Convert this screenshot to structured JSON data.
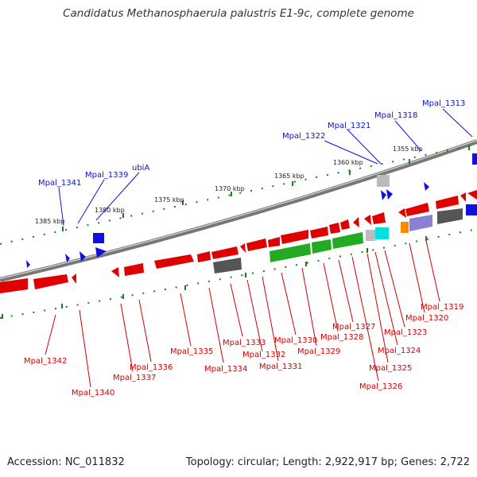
{
  "title": "Candidatus Methanosphaerula palustris E1-9c, complete genome",
  "accession": "Accession: NC_011832",
  "topology": "Topology: circular; Length: 2,922,917 bp; Genes: 2,722",
  "colors": {
    "backbone": "#777777",
    "tick": "#1e7a1e",
    "forward_gene": "#1010e0",
    "reverse_gene": "#e00000",
    "label_forward": "#0a14c8",
    "label_reverse": "#d40000",
    "green_block": "#22aa22",
    "grey_block": "#555555",
    "cyan_block": "#00e0e0",
    "purple_block": "#8a7fd0",
    "orange_block": "#ff8800"
  },
  "scale_labels": [
    "1385 kbp",
    "1380 kbp",
    "1375 kbp",
    "1370 kbp",
    "1365 kbp",
    "1360 kbp",
    "1355 kbp"
  ],
  "forward_labels": [
    "Mpal_1341",
    "Mpal_1339",
    "ubiA",
    "Mpal_1322",
    "Mpal_1321",
    "Mpal_1318",
    "Mpal_1313"
  ],
  "reverse_labels": [
    "Mpal_1342",
    "Mpal_1340",
    "Mpal_1337",
    "Mpal_1336",
    "Mpal_1335",
    "Mpal_1334",
    "Mpal_1333",
    "Mpal_1332",
    "Mpal_1331",
    "Mpal_1330",
    "Mpal_1329",
    "Mpal_1328",
    "Mpal_1327",
    "Mpal_1326",
    "Mpal_1325",
    "Mpal_1324",
    "Mpal_1323",
    "Mpal_1320",
    "Mpal_1319"
  ]
}
